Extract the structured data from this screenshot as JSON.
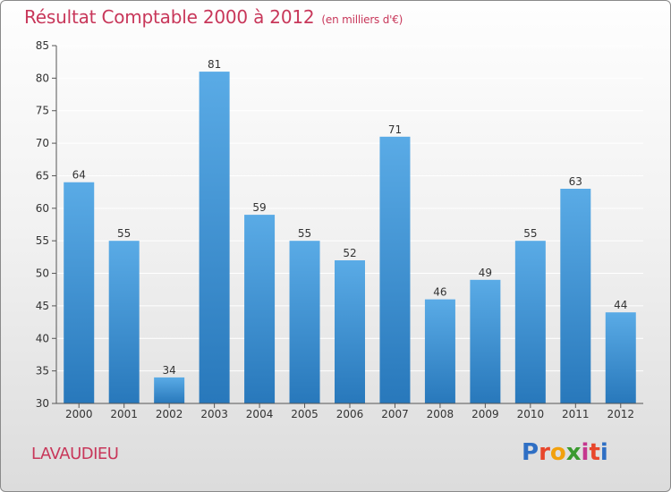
{
  "header": {
    "title": "Résultat Comptable 2000 à 2012",
    "subtitle": "(en milliers d'€)"
  },
  "footer": {
    "commune": "LAVAUDIEU",
    "logo_letters": [
      "P",
      "r",
      "o",
      "x",
      "i",
      "t",
      "i"
    ],
    "logo_colors": [
      "#2f6fc4",
      "#e8462b",
      "#f2a10d",
      "#3a9a2e",
      "#c5378f",
      "#e8462b",
      "#2f6fc4"
    ]
  },
  "colors": {
    "bar_top": "#5aabe6",
    "bar_bottom": "#2878bb",
    "axis": "#555555",
    "grid": "#ffffff"
  },
  "chart_data": {
    "type": "bar",
    "categories": [
      "2000",
      "2001",
      "2002",
      "2003",
      "2004",
      "2005",
      "2006",
      "2007",
      "2008",
      "2009",
      "2010",
      "2011",
      "2012"
    ],
    "values": [
      64,
      55,
      34,
      81,
      59,
      55,
      52,
      71,
      46,
      49,
      55,
      63,
      44
    ],
    "title": "Résultat Comptable 2000 à 2012",
    "xlabel": "",
    "ylabel": "",
    "ylim": [
      30,
      85
    ],
    "yticks": [
      30,
      35,
      40,
      45,
      50,
      55,
      60,
      65,
      70,
      75,
      80,
      85
    ],
    "grid": true
  }
}
